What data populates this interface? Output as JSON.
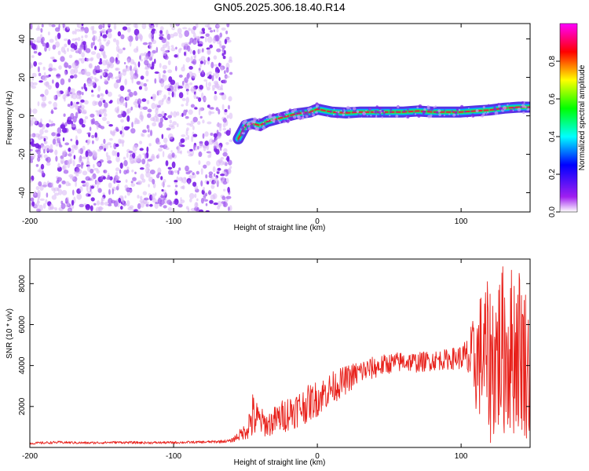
{
  "title": "GN05.2025.306.18.40.R14",
  "colors": {
    "line": "#e8211b",
    "scatter": "#7a1ee6",
    "band_core": "#e8213a",
    "band_mid": "#1fe06a",
    "band_outer": "#3a10e0",
    "axis": "#000000"
  },
  "chart_data": [
    {
      "type": "heatmap",
      "name": "spectrogram",
      "xlabel": "Height of straight line (km)",
      "ylabel": "Frequency (Hz)",
      "xlim": [
        -200,
        148
      ],
      "ylim": [
        -50,
        48
      ],
      "xticks": [
        -200,
        -100,
        0,
        100
      ],
      "xtick_labels": [
        "-200",
        "-100",
        "0",
        "100"
      ],
      "yticks": [
        -40,
        -20,
        0,
        20,
        40
      ],
      "ytick_labels": [
        "-40",
        "-20",
        "0",
        "20",
        "40"
      ],
      "noise_region": {
        "x_min": -200,
        "x_max": -60,
        "description_hz_range": [
          -50,
          48
        ]
      },
      "tone_track": {
        "x": [
          -55,
          -50,
          -45,
          -40,
          -35,
          -30,
          -25,
          -20,
          -15,
          -10,
          -5,
          0,
          10,
          20,
          30,
          40,
          50,
          60,
          70,
          80,
          90,
          100,
          110,
          120,
          130,
          140,
          148
        ],
        "freq_hz": [
          -12,
          -5,
          -4,
          -5,
          -3,
          -2,
          -1,
          0,
          1,
          1.5,
          2,
          3.5,
          2,
          1.5,
          2,
          2,
          2,
          2,
          2.5,
          2,
          2,
          2,
          2.5,
          3,
          4,
          4.5,
          4.5
        ]
      },
      "colorbar": {
        "label": "Normalized spectral amplitude",
        "range": [
          0,
          1
        ],
        "ticks": [
          0.0,
          0.2,
          0.4,
          0.6,
          0.8
        ],
        "tick_labels": [
          "0.0",
          "0.2",
          "0.4",
          "0.6",
          "0.8"
        ],
        "colormap": [
          "#ffffff",
          "#a020f0",
          "#0000ff",
          "#00ffff",
          "#00ff00",
          "#ffff00",
          "#ff0000",
          "#ff00ff"
        ]
      }
    },
    {
      "type": "line",
      "name": "snr",
      "xlabel": "Height of straight line (km)",
      "ylabel": "SNR (10 * v/v)",
      "xlim": [
        -200,
        148
      ],
      "ylim": [
        0,
        9200
      ],
      "xticks": [
        -200,
        -100,
        0,
        100
      ],
      "xtick_labels": [
        "-200",
        "-100",
        "0",
        "100"
      ],
      "yticks": [
        2000,
        4000,
        6000,
        8000
      ],
      "ytick_labels": [
        "2000",
        "4000",
        "6000",
        "8000"
      ],
      "x": [
        -200,
        -180,
        -160,
        -140,
        -120,
        -100,
        -80,
        -70,
        -60,
        -50,
        -45,
        -40,
        -35,
        -30,
        -25,
        -20,
        -10,
        0,
        10,
        20,
        30,
        40,
        50,
        60,
        70,
        80,
        90,
        100,
        105,
        110,
        115,
        120,
        125,
        130,
        135,
        140,
        145,
        148
      ],
      "y": [
        200,
        250,
        220,
        250,
        230,
        240,
        260,
        280,
        320,
        800,
        1500,
        1300,
        1100,
        1300,
        1500,
        1700,
        2000,
        2400,
        2900,
        3300,
        3700,
        3900,
        4100,
        4200,
        4150,
        4250,
        4300,
        4400,
        4300,
        4200,
        4600,
        4100,
        4500,
        4800,
        4700,
        5000,
        4200,
        3500
      ],
      "amplitude_envelope": [
        60,
        60,
        60,
        60,
        60,
        60,
        60,
        70,
        80,
        400,
        1200,
        700,
        600,
        700,
        800,
        900,
        900,
        900,
        800,
        700,
        600,
        550,
        500,
        500,
        500,
        500,
        500,
        600,
        1200,
        2500,
        3500,
        4000,
        4200,
        4300,
        4300,
        4300,
        3800,
        3200
      ]
    }
  ]
}
